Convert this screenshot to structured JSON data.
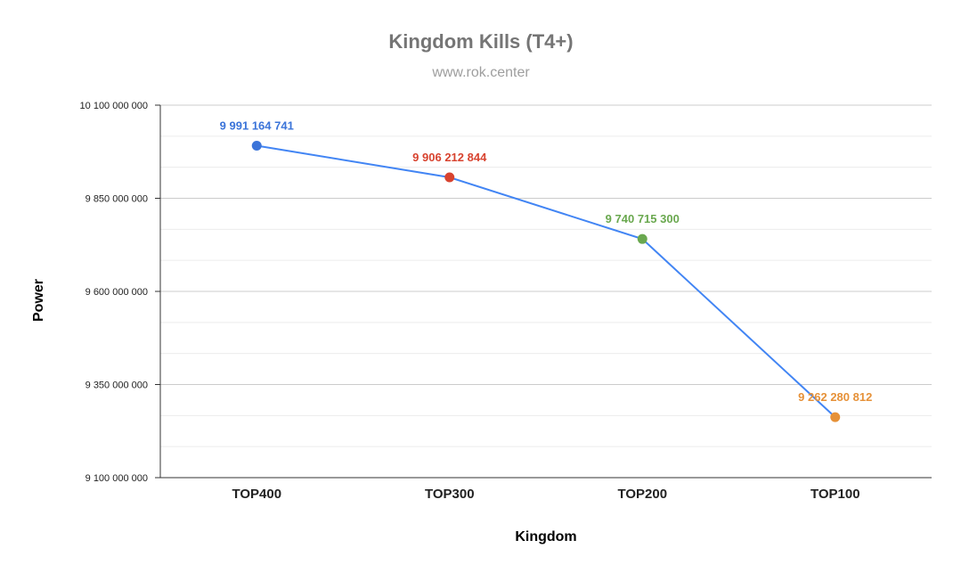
{
  "chart_data": {
    "type": "line",
    "title": "Kingdom Kills (T4+)",
    "subtitle": "www.rok.center",
    "xlabel": "Kingdom",
    "ylabel": "Power",
    "categories": [
      "TOP400",
      "TOP300",
      "TOP200",
      "TOP100"
    ],
    "series": [
      {
        "values": [
          9991164741,
          9906212844,
          9740715300,
          9262280812
        ],
        "point_colors": [
          "#3b74d9",
          "#d8432f",
          "#6aa84f",
          "#e69138"
        ],
        "data_labels": [
          "9 991 164 741",
          "9 906 212 844",
          "9 740 715 300",
          "9 262 280 812"
        ]
      }
    ],
    "ylim": [
      9100000000,
      10100000000
    ],
    "yticks": [
      9100000000,
      9350000000,
      9600000000,
      9850000000,
      10100000000
    ],
    "ytick_labels": [
      "9 100 000 000",
      "9 350 000 000",
      "9 600 000 000",
      "9 850 000 000",
      "10 100 000 000"
    ],
    "grid": true,
    "line_color": "#4285f4"
  }
}
